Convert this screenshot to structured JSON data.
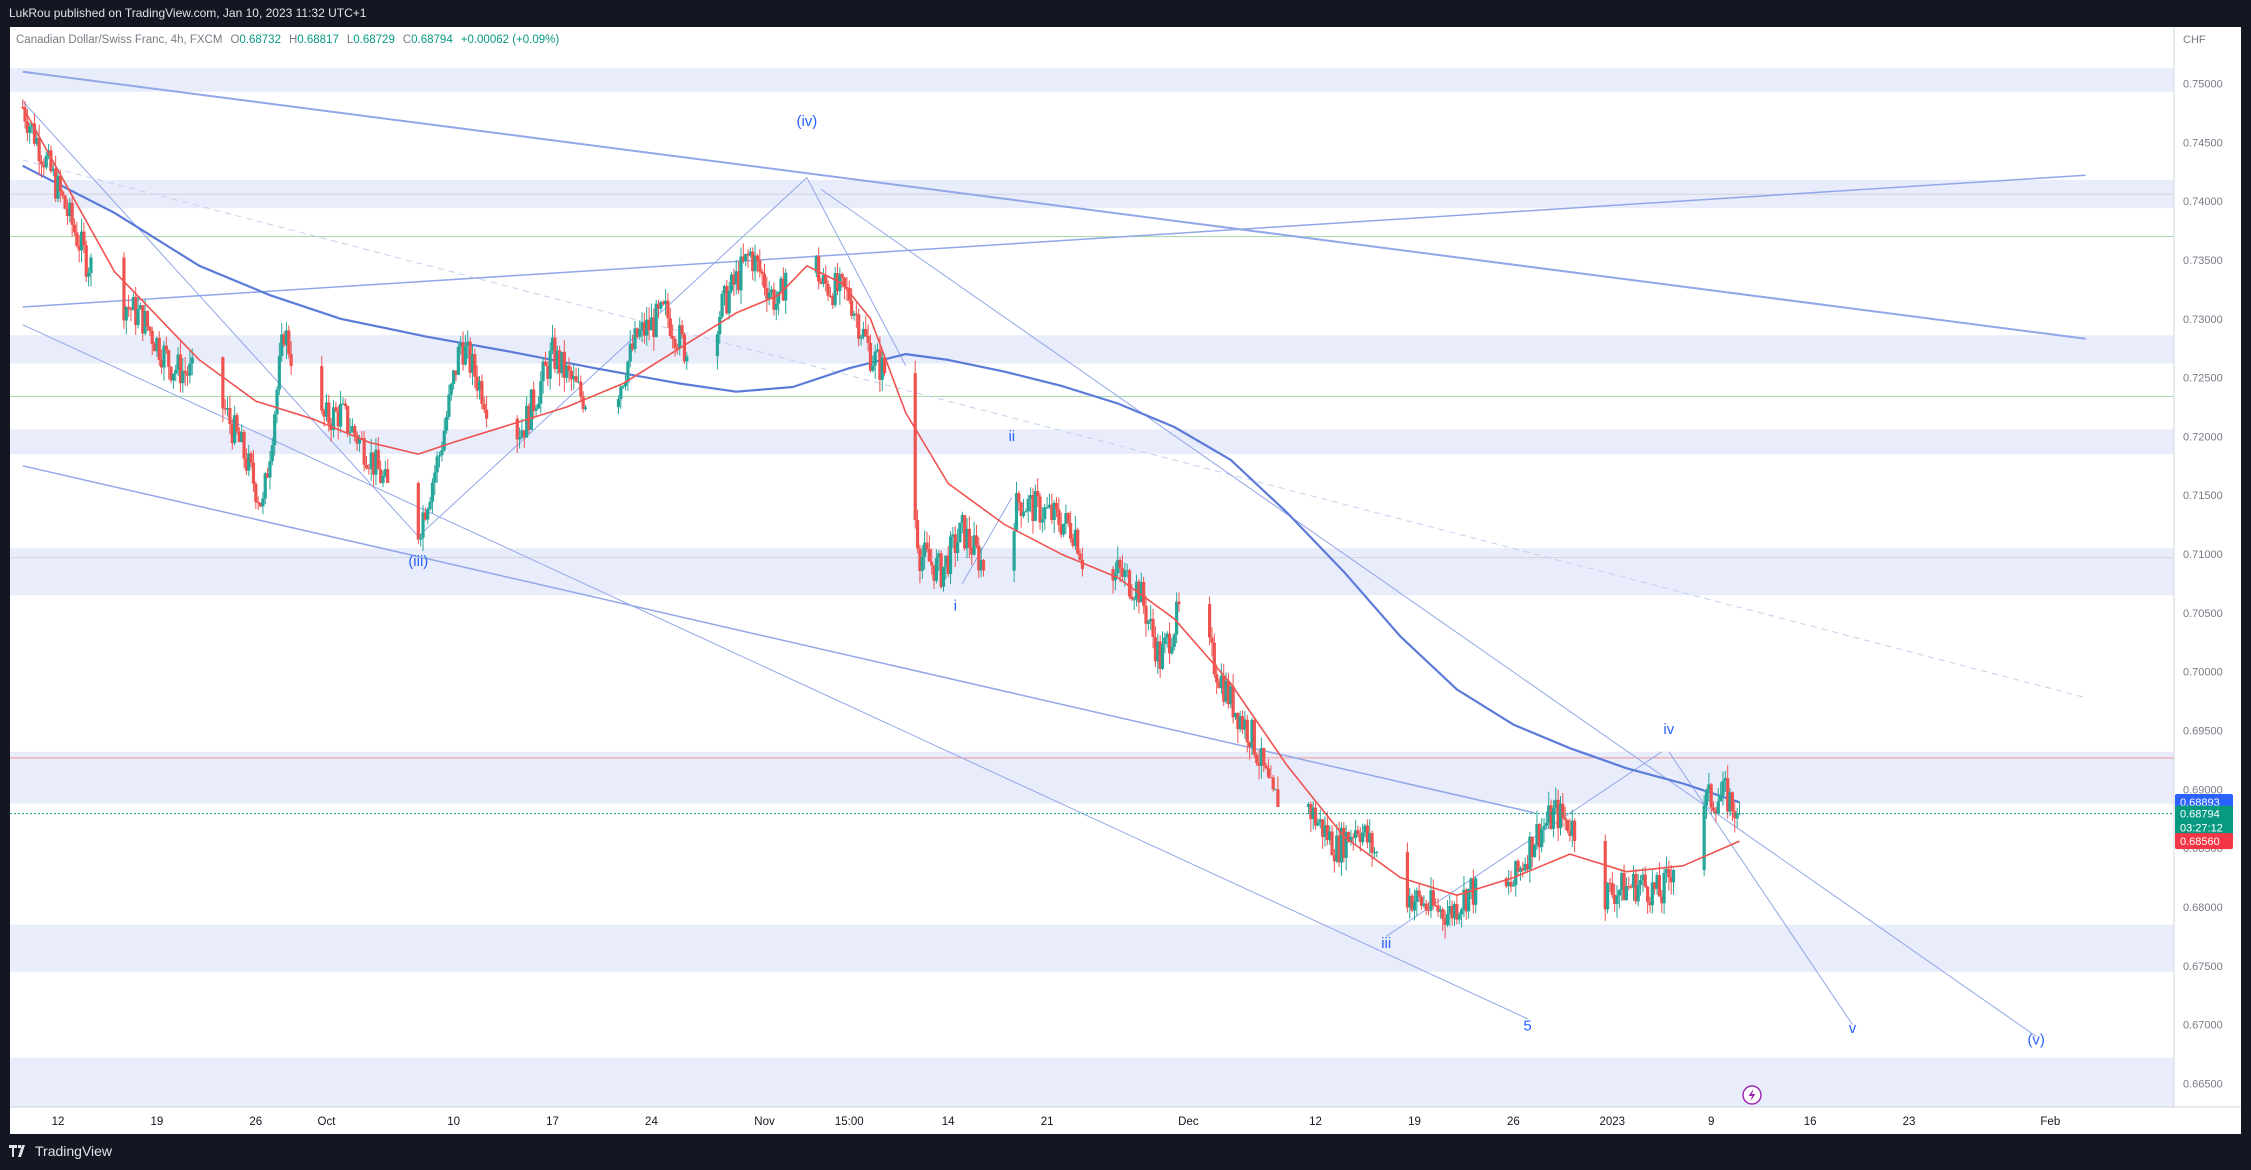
{
  "header": {
    "published_text": "LukRou published on TradingView.com, Jan 10, 2023 11:32 UTC+1"
  },
  "legend": {
    "symbol": "Canadian Dollar/Swiss Franc, 4h, FXCM",
    "o_label": "O",
    "o_value": "0.68732",
    "h_label": "H",
    "h_value": "0.68817",
    "l_label": "L",
    "l_value": "0.68729",
    "c_label": "C",
    "c_value": "0.68794",
    "change": "+0.00062 (+0.09%)"
  },
  "footer": {
    "brand": "TradingView"
  },
  "colors": {
    "background": "#ffffff",
    "frame": "#131722",
    "bull": "#26a69a",
    "bear": "#ef5350",
    "ma_short": "#ef5350",
    "ma_long": "#5b7bd9",
    "zone": "#e8ecfb",
    "trendline": "#91a7e8",
    "wave_label": "#2962ff"
  },
  "chart_data": {
    "type": "candlestick",
    "currency": "CHF",
    "ylim": [
      0.663,
      0.7548
    ],
    "y_ticks": [
      "0.75000",
      "0.74500",
      "0.74000",
      "0.73500",
      "0.73000",
      "0.72500",
      "0.72000",
      "0.71500",
      "0.71000",
      "0.70500",
      "0.70000",
      "0.69500",
      "0.69000",
      "0.68500",
      "0.68000",
      "0.67500",
      "0.67000",
      "0.66500"
    ],
    "x_ticks": [
      "12",
      "19",
      "26",
      "Oct",
      "10",
      "17",
      "24",
      "Nov",
      "15:00",
      "14",
      "21",
      "Dec",
      "12",
      "19",
      "26",
      "2023",
      "9",
      "16",
      "23",
      "Feb"
    ],
    "x_tick_day_offsets": [
      0,
      7,
      14,
      19,
      28,
      35,
      42,
      50,
      56,
      63,
      70,
      80,
      89,
      96,
      103,
      110,
      117,
      124,
      131,
      141
    ],
    "last_candle_day_offset": 119,
    "price_labels": [
      {
        "value": "0.68893",
        "color": "#2962ff"
      },
      {
        "value": "0.68794",
        "color": "#089981"
      },
      {
        "value": "03:27:12",
        "color": "#089981"
      },
      {
        "value": "0.68560",
        "color": "#f23645"
      }
    ],
    "last_price": 0.68794,
    "zones": [
      [
        0.7493,
        0.7513
      ],
      [
        0.7394,
        0.7418
      ],
      [
        0.7262,
        0.7286
      ],
      [
        0.7185,
        0.7206
      ],
      [
        0.7065,
        0.7105
      ],
      [
        0.6888,
        0.6932
      ],
      [
        0.6745,
        0.6785
      ],
      [
        0.663,
        0.6672
      ]
    ],
    "hlines": [
      {
        "y": 0.74058,
        "color": "#d1d4dc"
      },
      {
        "y": 0.73698,
        "color": "#a5d6a7"
      },
      {
        "y": 0.7234,
        "color": "#a5d6a7"
      },
      {
        "y": 0.7097,
        "color": "#d1d4dc"
      },
      {
        "y": 0.69268,
        "color": "#ef9a9a"
      }
    ],
    "anchors": [
      [
        -2.5,
        0.748
      ],
      [
        0,
        0.741
      ],
      [
        2,
        0.735
      ],
      [
        4,
        0.732
      ],
      [
        6,
        0.73
      ],
      [
        8,
        0.726
      ],
      [
        10,
        0.725
      ],
      [
        11.5,
        0.723
      ],
      [
        13,
        0.719
      ],
      [
        14.5,
        0.714
      ],
      [
        16,
        0.729
      ],
      [
        18,
        0.721
      ],
      [
        20,
        0.722
      ],
      [
        22,
        0.7185
      ],
      [
        24,
        0.714
      ],
      [
        25.5,
        0.712
      ],
      [
        27,
        0.7185
      ],
      [
        28.5,
        0.728
      ],
      [
        30,
        0.724
      ],
      [
        31.5,
        0.7195
      ],
      [
        33,
        0.721
      ],
      [
        35,
        0.727
      ],
      [
        37,
        0.7235
      ],
      [
        39,
        0.722
      ],
      [
        41,
        0.7285
      ],
      [
        43,
        0.7305
      ],
      [
        45,
        0.726
      ],
      [
        47,
        0.731
      ],
      [
        49,
        0.7355
      ],
      [
        51,
        0.731
      ],
      [
        52.5,
        0.74
      ],
      [
        54,
        0.733
      ],
      [
        56,
        0.732
      ],
      [
        57.5,
        0.727
      ],
      [
        59.5,
        0.724
      ],
      [
        61,
        0.71
      ],
      [
        62.5,
        0.7085
      ],
      [
        64,
        0.712
      ],
      [
        66,
        0.708
      ],
      [
        68,
        0.7145
      ],
      [
        70,
        0.7135
      ],
      [
        72,
        0.712
      ],
      [
        73.5,
        0.705
      ],
      [
        75,
        0.7085
      ],
      [
        76.5,
        0.707
      ],
      [
        78,
        0.701
      ],
      [
        79.5,
        0.7055
      ],
      [
        81,
        0.703
      ],
      [
        83,
        0.6975
      ],
      [
        84.5,
        0.6945
      ],
      [
        86,
        0.689
      ],
      [
        87.5,
        0.6905
      ],
      [
        89,
        0.6875
      ],
      [
        90.5,
        0.685
      ],
      [
        92,
        0.687
      ],
      [
        94,
        0.683
      ],
      [
        95.5,
        0.681
      ],
      [
        97,
        0.68
      ],
      [
        98.5,
        0.6795
      ],
      [
        100,
        0.6815
      ],
      [
        101.5,
        0.68
      ],
      [
        103,
        0.682
      ],
      [
        104.5,
        0.686
      ],
      [
        106,
        0.688
      ],
      [
        107.5,
        0.6865
      ],
      [
        109,
        0.681
      ],
      [
        110.5,
        0.6815
      ],
      [
        112,
        0.682
      ],
      [
        113.5,
        0.681
      ],
      [
        115,
        0.686
      ],
      [
        116.5,
        0.689
      ],
      [
        118,
        0.6895
      ],
      [
        119,
        0.6879
      ]
    ],
    "ma_short": [
      [
        -2.5,
        0.748
      ],
      [
        4,
        0.734
      ],
      [
        10,
        0.7265
      ],
      [
        14,
        0.723
      ],
      [
        18,
        0.7215
      ],
      [
        22,
        0.7195
      ],
      [
        25.5,
        0.7185
      ],
      [
        28,
        0.7195
      ],
      [
        32,
        0.721
      ],
      [
        36,
        0.7225
      ],
      [
        40,
        0.7245
      ],
      [
        44,
        0.7275
      ],
      [
        48,
        0.7305
      ],
      [
        51,
        0.732
      ],
      [
        53,
        0.7345
      ],
      [
        55.5,
        0.733
      ],
      [
        57.5,
        0.73
      ],
      [
        60,
        0.722
      ],
      [
        63,
        0.716
      ],
      [
        67,
        0.7125
      ],
      [
        71,
        0.71
      ],
      [
        75,
        0.708
      ],
      [
        79,
        0.7045
      ],
      [
        83,
        0.699
      ],
      [
        87,
        0.692
      ],
      [
        91,
        0.686
      ],
      [
        95,
        0.6825
      ],
      [
        99,
        0.681
      ],
      [
        103,
        0.6825
      ],
      [
        107,
        0.6845
      ],
      [
        111,
        0.683
      ],
      [
        115,
        0.6835
      ],
      [
        119,
        0.6856
      ]
    ],
    "ma_long": [
      [
        -2.5,
        0.743
      ],
      [
        4,
        0.739
      ],
      [
        10,
        0.7345
      ],
      [
        15,
        0.732
      ],
      [
        20,
        0.73
      ],
      [
        26,
        0.7285
      ],
      [
        32,
        0.7272
      ],
      [
        38,
        0.7258
      ],
      [
        44,
        0.7245
      ],
      [
        48,
        0.7238
      ],
      [
        52,
        0.7242
      ],
      [
        56,
        0.7258
      ],
      [
        60,
        0.727
      ],
      [
        63,
        0.7265
      ],
      [
        67,
        0.7255
      ],
      [
        71,
        0.7243
      ],
      [
        75,
        0.7228
      ],
      [
        79,
        0.7208
      ],
      [
        83,
        0.718
      ],
      [
        87,
        0.7135
      ],
      [
        91,
        0.7085
      ],
      [
        95,
        0.703
      ],
      [
        99,
        0.6985
      ],
      [
        103,
        0.6955
      ],
      [
        107,
        0.6935
      ],
      [
        111,
        0.6918
      ],
      [
        115,
        0.6905
      ],
      [
        119,
        0.6889
      ]
    ],
    "trendlines": [
      {
        "from": [
          -2.5,
          0.751
        ],
        "to": [
          143.5,
          0.7283
        ],
        "style": "solid",
        "width": 2
      },
      {
        "from": [
          -2.5,
          0.731
        ],
        "to": [
          143.5,
          0.7422
        ],
        "style": "solid",
        "width": 1.5
      },
      {
        "from": [
          -2.5,
          0.7435
        ],
        "to": [
          143.5,
          0.6978
        ],
        "style": "dashed",
        "width": 1
      },
      {
        "from": [
          -2.5,
          0.7175
        ],
        "to": [
          104.5,
          0.688
        ],
        "style": "solid",
        "width": 1.5
      },
      {
        "from": [
          -2.5,
          0.7295
        ],
        "to": [
          104,
          0.6705
        ],
        "style": "solid",
        "width": 1
      },
      {
        "from": [
          54,
          0.741
        ],
        "to": [
          140,
          0.669
        ],
        "style": "solid",
        "width": 1
      },
      {
        "from": [
          114,
          0.6932
        ],
        "to": [
          127,
          0.67
        ],
        "style": "solid",
        "width": 1
      },
      {
        "from": [
          -2.5,
          0.7485
        ],
        "to": [
          25.5,
          0.7115
        ],
        "style": "solid",
        "width": 1
      },
      {
        "from": [
          25.5,
          0.7115
        ],
        "to": [
          53,
          0.742
        ],
        "style": "solid",
        "width": 1
      },
      {
        "from": [
          53,
          0.742
        ],
        "to": [
          60,
          0.726
        ],
        "style": "solid",
        "width": 1
      },
      {
        "from": [
          64,
          0.7075
        ],
        "to": [
          67.5,
          0.7148
        ],
        "style": "solid",
        "width": 1
      },
      {
        "from": [
          94,
          0.6775
        ],
        "to": [
          113.5,
          0.6932
        ],
        "style": "solid",
        "width": 1
      }
    ],
    "wave_labels": [
      {
        "text": "(iv)",
        "day": 53,
        "y": 0.7464
      },
      {
        "text": "(iii)",
        "day": 25.5,
        "y": 0.709
      },
      {
        "text": "ii",
        "day": 67.5,
        "y": 0.7196
      },
      {
        "text": "i",
        "day": 63.5,
        "y": 0.7052
      },
      {
        "text": "iii",
        "day": 94,
        "y": 0.6765
      },
      {
        "text": "iv",
        "day": 114,
        "y": 0.6947
      },
      {
        "text": "5",
        "day": 104,
        "y": 0.6695
      },
      {
        "text": "v",
        "day": 127,
        "y": 0.6693
      },
      {
        "text": "(v)",
        "day": 140,
        "y": 0.6683
      }
    ]
  }
}
